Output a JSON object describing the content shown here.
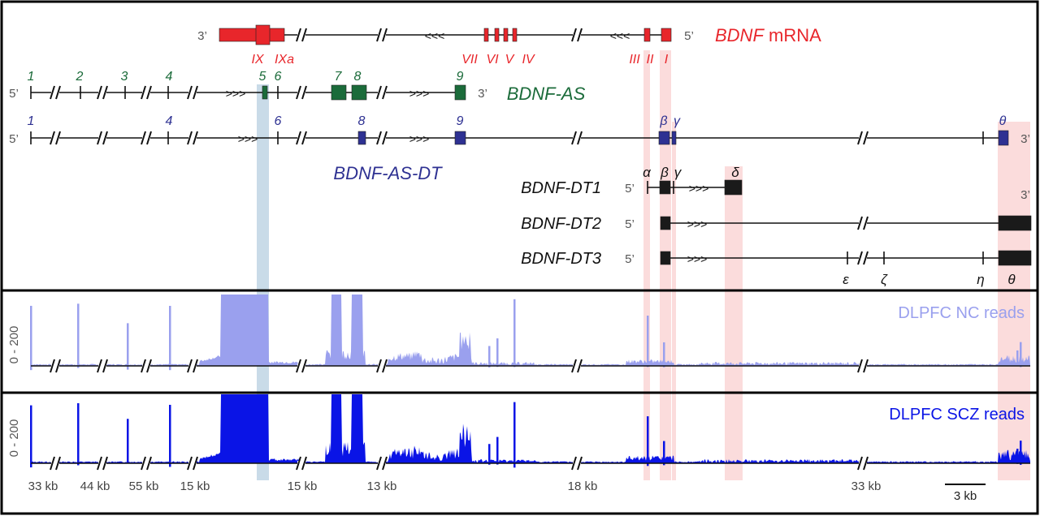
{
  "colors": {
    "mrna": "#e8262b",
    "as": "#1b6b3a",
    "asdt": "#2e3192",
    "dt": "#1a1a1a",
    "nc": "#9aa0ee",
    "scz": "#0a14e6",
    "hl_blue": "#c9dbe8",
    "hl_pink": "#fbdcdc",
    "label_grey": "#555555"
  },
  "mrna": {
    "name": "BDNF",
    "suffix": " mRNA",
    "end_left": "3’",
    "end_right": "5’",
    "arrows": "<<<",
    "exons": [
      "IX",
      "IXa",
      "VII",
      "VI",
      "V",
      "IV",
      "III",
      "II",
      "I"
    ]
  },
  "as": {
    "name": "BDNF-AS",
    "end_left": "5’",
    "end_right": "3’",
    "arrows": ">>>",
    "exons": [
      "1",
      "2",
      "3",
      "4",
      "5",
      "6",
      "7",
      "8",
      "9"
    ]
  },
  "asdt": {
    "name": "BDNF-AS-DT",
    "end_left": "5’",
    "end_right": "3’",
    "arrows": ">>>",
    "exons": [
      "1",
      "4",
      "6",
      "8",
      "9",
      "β",
      "γ",
      "θ"
    ]
  },
  "dt": {
    "end_left": "5’",
    "end_right": "3’",
    "arrows": ">>>",
    "rows": [
      {
        "name": "BDNF-DT1"
      },
      {
        "name": "BDNF-DT2"
      },
      {
        "name": "BDNF-DT3"
      }
    ],
    "exons_top": [
      "α",
      "β",
      "γ",
      "δ"
    ],
    "exons_bottom": [
      "ε",
      "ζ",
      "η",
      "θ"
    ]
  },
  "tracks": {
    "axis_label": "0 - 200",
    "nc_label": "DLPFC NC reads",
    "scz_label": "DLPFC SCZ reads"
  },
  "gaps": [
    "33 kb",
    "44 kb",
    "55 kb",
    "15 kb",
    "15 kb",
    "13 kb",
    "18 kb",
    "33 kb"
  ],
  "scalebar": "3 kb"
}
